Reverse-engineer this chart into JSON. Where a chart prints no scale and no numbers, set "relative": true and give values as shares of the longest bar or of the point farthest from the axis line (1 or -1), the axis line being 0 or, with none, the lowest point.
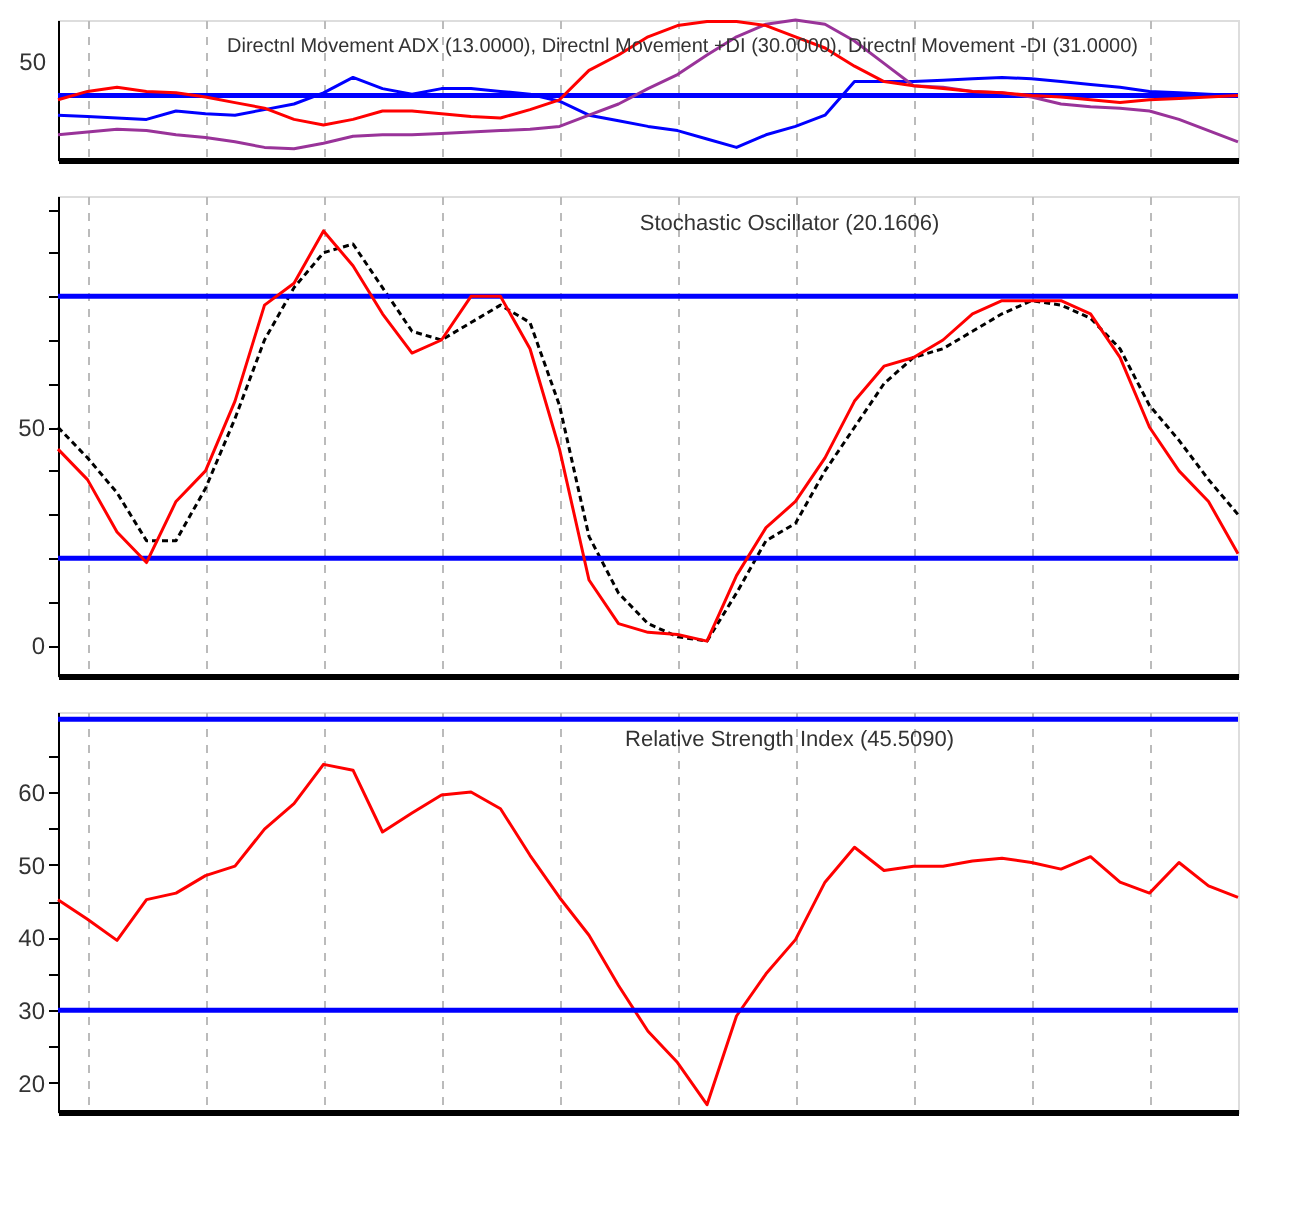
{
  "chart_data": [
    {
      "type": "line",
      "title": "Directnl Movement ADX (13.0000), Directnl Movement +DI (30.0000), Directnl Movement -DI (31.0000)",
      "relative": true,
      "categories": [
        null,
        null,
        null,
        null,
        null,
        null,
        null,
        null,
        null,
        null,
        null,
        null,
        null,
        null,
        null,
        null,
        null,
        null,
        null,
        null,
        null,
        null,
        null,
        null,
        null,
        null,
        null,
        null,
        null,
        null,
        null,
        null,
        null,
        null,
        null,
        null,
        null,
        null,
        null,
        null,
        null
      ],
      "series": [
        {
          "color": "#0000ff",
          "values": [
            0.32,
            0.31,
            0.3,
            0.29,
            0.35,
            0.33,
            0.32,
            0.36,
            0.4,
            0.48,
            0.59,
            0.51,
            0.47,
            0.51,
            0.51,
            0.49,
            0.47,
            0.42,
            0.32,
            0.28,
            0.24,
            0.21,
            0.15,
            0.09,
            0.18,
            0.24,
            0.32,
            0.56,
            0.56,
            0.56,
            0.57,
            0.58,
            0.59,
            0.58,
            0.56,
            0.54,
            0.52,
            0.49,
            0.48,
            0.47,
            0.46
          ]
        },
        {
          "color": "#993399",
          "values": [
            0.18,
            0.2,
            0.22,
            0.21,
            0.18,
            0.16,
            0.13,
            0.09,
            0.08,
            0.12,
            0.17,
            0.18,
            0.18,
            0.19,
            0.2,
            0.21,
            0.22,
            0.24,
            0.32,
            0.4,
            0.51,
            0.61,
            0.75,
            0.88,
            0.97,
            1.0,
            0.97,
            0.85,
            0.69,
            0.53,
            0.52,
            0.49,
            0.48,
            0.45,
            0.4,
            0.38,
            0.37,
            0.35,
            0.29,
            0.21,
            0.13
          ]
        },
        {
          "color": "#ff0000",
          "values": [
            0.43,
            0.49,
            0.52,
            0.49,
            0.48,
            0.45,
            0.41,
            0.37,
            0.29,
            0.25,
            0.29,
            0.35,
            0.35,
            0.33,
            0.31,
            0.3,
            0.36,
            0.43,
            0.64,
            0.75,
            0.88,
            0.96,
            0.99,
            0.99,
            0.96,
            0.88,
            0.8,
            0.67,
            0.56,
            0.53,
            0.51,
            0.49,
            0.48,
            0.46,
            0.45,
            0.43,
            0.41,
            0.43,
            0.44,
            0.45,
            0.46
          ]
        }
      ],
      "ref_lines": [
        {
          "axis": "y",
          "value": 0.46,
          "color": "#0000ff"
        }
      ],
      "annotations": [
        "50"
      ],
      "grid": "x",
      "tick_labels": "y"
    },
    {
      "type": "line",
      "title": "Stochastic Oscillator (20.1606)",
      "categories": [
        null,
        null,
        null,
        null,
        null,
        null,
        null,
        null,
        null,
        null,
        null,
        null,
        null,
        null,
        null,
        null,
        null,
        null,
        null,
        null,
        null,
        null,
        null,
        null,
        null,
        null,
        null,
        null,
        null,
        null,
        null,
        null,
        null,
        null,
        null,
        null,
        null,
        null,
        null,
        null,
        null
      ],
      "series": [
        {
          "color": "#000000",
          "line_style": "dashed",
          "values": [
            50,
            43,
            35,
            24,
            24,
            36,
            52,
            70,
            82,
            90,
            92,
            82,
            72,
            70,
            74,
            78,
            74,
            55,
            25,
            12,
            5,
            2,
            1,
            12,
            24,
            28,
            40,
            50,
            60,
            66,
            68,
            72,
            76,
            79,
            78,
            75,
            68,
            55,
            47,
            38,
            30
          ]
        },
        {
          "color": "#ff0000",
          "values": [
            45,
            38,
            26,
            19,
            33,
            40,
            56,
            78,
            83,
            95,
            87,
            76,
            67,
            70,
            80,
            80,
            68,
            45,
            15,
            5,
            3,
            2.5,
            1,
            16,
            27,
            33,
            43,
            56,
            64,
            66,
            70,
            76,
            79,
            79,
            79,
            76,
            66,
            50,
            40,
            33,
            21
          ]
        }
      ],
      "ylim": [
        -7,
        103
      ],
      "yticks": [
        {
          "value": 0,
          "label": "0"
        },
        {
          "value": 10,
          "label": null
        },
        {
          "value": 20,
          "label": null
        },
        {
          "value": 30,
          "label": null
        },
        {
          "value": 40,
          "label": null
        },
        {
          "value": 50,
          "label": "50"
        },
        {
          "value": 60,
          "label": null
        },
        {
          "value": 70,
          "label": null
        },
        {
          "value": 80,
          "label": null
        },
        {
          "value": 90,
          "label": null
        },
        {
          "value": 100,
          "label": null
        }
      ],
      "ref_lines": [
        {
          "axis": "y",
          "value": 80,
          "color": "#0000ff"
        },
        {
          "axis": "y",
          "value": 20,
          "color": "#0000ff"
        }
      ],
      "grid": "x",
      "tick_labels": "y"
    },
    {
      "type": "line",
      "title": "Relative Strength Index (45.5090)",
      "categories": [
        null,
        null,
        null,
        null,
        null,
        null,
        null,
        null,
        null,
        null,
        null,
        null,
        null,
        null,
        null,
        null,
        null,
        null,
        null,
        null,
        null,
        null,
        null,
        null,
        null,
        null,
        null,
        null,
        null,
        null,
        null,
        null,
        null,
        null,
        null,
        null,
        null,
        null,
        null,
        null,
        null
      ],
      "series": [
        {
          "color": "#ff0000",
          "values": [
            45.2,
            42.5,
            39.6,
            45.2,
            46.1,
            48.5,
            49.8,
            54.9,
            58.4,
            63.8,
            63.0,
            54.5,
            57.1,
            59.6,
            60,
            57.7,
            51.3,
            45.5,
            40.3,
            33.4,
            27.1,
            22.8,
            17,
            29.2,
            35.0,
            39.7,
            47.6,
            52.4,
            49.2,
            49.8,
            49.8,
            50.5,
            50.9,
            50.3,
            49.4,
            51.1,
            47.6,
            46.1,
            50.3,
            47.1,
            45.5
          ]
        }
      ],
      "ylim": [
        16,
        71
      ],
      "yticks": [
        20,
        {
          "value": 25,
          "label": null
        },
        30,
        {
          "value": 35,
          "label": null
        },
        40,
        {
          "value": 45,
          "label": null
        },
        50,
        {
          "value": 55,
          "label": null
        },
        60,
        {
          "value": 65,
          "label": null
        }
      ],
      "ref_lines": [
        {
          "axis": "y",
          "value": 70,
          "color": "#0000ff"
        },
        {
          "axis": "y",
          "value": 30,
          "color": "#0000ff"
        }
      ],
      "grid": "x",
      "tick_labels": "y"
    }
  ]
}
